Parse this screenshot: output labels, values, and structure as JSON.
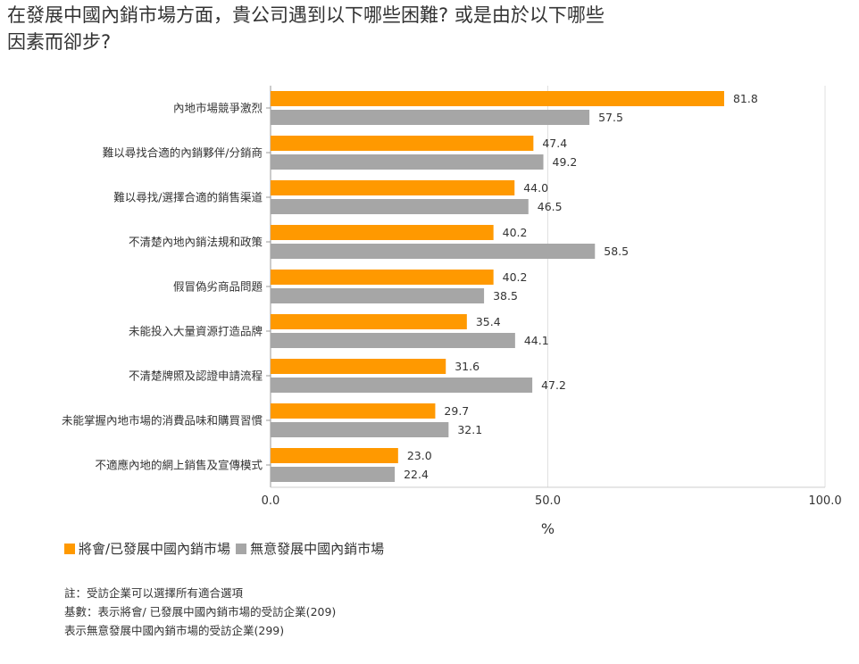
{
  "title_lines": [
    "在發展中國內銷市場方面，貴公司遇到以下哪些困難? 或是由於以下哪些",
    "因素而卻步?"
  ],
  "chart_data": {
    "type": "bar",
    "orientation": "horizontal",
    "categories": [
      "內地市場競爭激烈",
      "難以尋找合適的內銷夥伴/分銷商",
      "難以尋找/選擇合適的銷售渠道",
      "不清楚內地內銷法規和政策",
      "假冒偽劣商品問題",
      "未能投入大量資源打造品牌",
      "不清楚牌照及認證申請流程",
      "未能掌握內地市場的消費品味和購買習慣",
      "不適應內地的網上銷售及宣傳模式"
    ],
    "series": [
      {
        "name": "將會/已發展中國內銷市場",
        "color": "#FF9900",
        "values": [
          81.8,
          47.4,
          44.0,
          40.2,
          40.2,
          35.4,
          31.6,
          29.7,
          23.0
        ],
        "labels": [
          "81.8",
          "47.4",
          "44.0",
          "40.2",
          "40.2",
          "35.4",
          "31.6",
          "29.7",
          "23.0"
        ]
      },
      {
        "name": "無意發展中國內銷市場",
        "color": "#A6A6A6",
        "values": [
          57.5,
          49.2,
          46.5,
          58.5,
          38.5,
          44.1,
          47.2,
          32.1,
          22.4
        ],
        "labels": [
          "57.5",
          "49.2",
          "46.5",
          "58.5",
          "38.5",
          "44.1",
          "47.2",
          "32.1",
          "22.4"
        ]
      }
    ],
    "xlim": [
      0,
      100
    ],
    "xticks": [
      0,
      50,
      100
    ],
    "xtick_labels": [
      "0.0",
      "50.0",
      "100.0"
    ],
    "xlabel": "%",
    "grid": true,
    "legend_position": "bottom-left"
  },
  "notes": [
    "註：受訪企業可以選擇所有適合選項",
    "基數：表示將會/ 已發展中國內銷市場的受訪企業(209)",
    "表示無意發展中國內銷市場的受訪企業(299)"
  ]
}
